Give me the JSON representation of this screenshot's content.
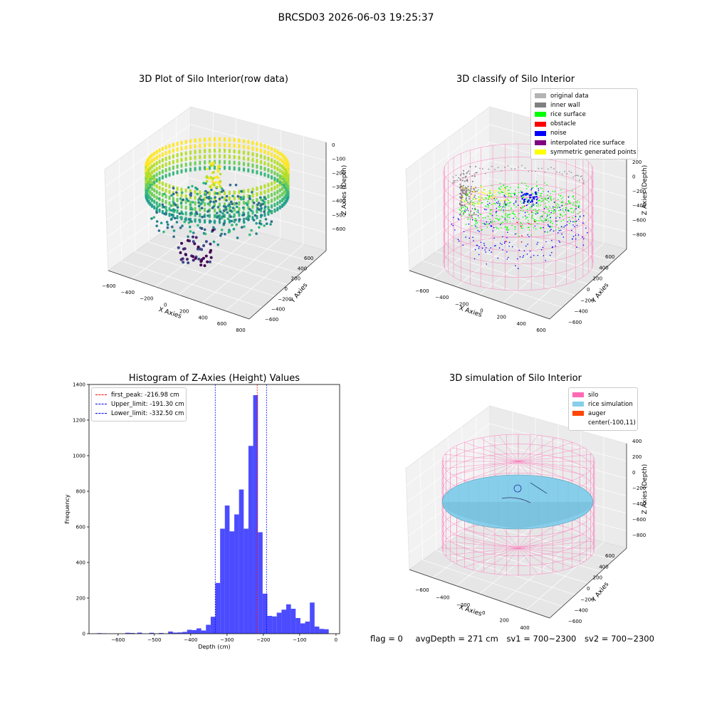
{
  "suptitle": "BRCSD03 2026-06-03 19:25:37",
  "panels": {
    "raw": {
      "title": "3D Plot of Silo Interior(row data)",
      "xlabel": "X Axies",
      "ylabel": "Y Axies",
      "zlabel": "Z Axies (Depth)",
      "xticks": [
        "−600",
        "−400",
        "−200",
        "0",
        "200",
        "400",
        "600",
        "800"
      ],
      "yticks": [
        "600",
        "400",
        "200",
        "0",
        "−200",
        "−400",
        "−600"
      ],
      "zticks": [
        "0",
        "−100",
        "−200",
        "−300",
        "−400",
        "−500",
        "−600"
      ]
    },
    "classify": {
      "title": "3D classify of Silo Interior",
      "xlabel": "X Axies",
      "ylabel": "Y Axies",
      "zlabel": "Z Axies (Depth)",
      "xticks": [
        "−600",
        "−400",
        "−200",
        "0",
        "200",
        "400",
        "600"
      ],
      "yticks": [
        "600",
        "400",
        "200",
        "0",
        "−200",
        "−400",
        "−600"
      ],
      "zticks": [
        "200",
        "0",
        "−200",
        "−400",
        "−600",
        "−800"
      ],
      "legend": [
        {
          "label": "original data",
          "color": "#b3b3b3"
        },
        {
          "label": "inner wall",
          "color": "#808080"
        },
        {
          "label": "rice surface",
          "color": "#00ff00"
        },
        {
          "label": "obstacle",
          "color": "#ff0000"
        },
        {
          "label": "noise",
          "color": "#0000ff"
        },
        {
          "label": "interpolated rice surface",
          "color": "#800080"
        },
        {
          "label": "symmetric generated points",
          "color": "#ffff00"
        }
      ]
    },
    "simulation": {
      "title": "3D simulation of Silo Interior",
      "xlabel": "X Axies",
      "ylabel": "Y Axies",
      "zlabel": "Z Axies (Depth)",
      "xticks": [
        "−600",
        "−400",
        "−200",
        "0",
        "200",
        "400"
      ],
      "yticks": [
        "600",
        "400",
        "200",
        "0",
        "−200",
        "−400",
        "−600"
      ],
      "zticks": [
        "400",
        "200",
        "0",
        "−200",
        "−400",
        "−600",
        "−800"
      ],
      "legend": [
        {
          "label": "silo",
          "color": "#ff69b4"
        },
        {
          "label": "rice simulation",
          "color": "#87ceeb"
        },
        {
          "label": "auger",
          "color": "#ff4500"
        },
        {
          "label": "center(-100,11)",
          "color": "#ffffff"
        }
      ]
    }
  },
  "chart_data": {
    "type": "bar",
    "title": "Histogram of Z-Axies (Height) Values",
    "xlabel": "Depth (cm)",
    "ylabel": "Frequency",
    "xlim": [
      -680,
      10
    ],
    "ylim": [
      0,
      1400
    ],
    "xticks": [
      -600,
      -500,
      -400,
      -300,
      -200,
      -100,
      0
    ],
    "xtick_labels": [
      "−600",
      "−500",
      "−400",
      "−300",
      "−200",
      "−100",
      "0"
    ],
    "yticks": [
      0,
      200,
      400,
      600,
      800,
      1000,
      1200,
      1400
    ],
    "bar_color": "#0000ff",
    "bins": [
      {
        "x0": -658,
        "x1": -645,
        "v": 3
      },
      {
        "x0": -645,
        "x1": -632,
        "v": 2
      },
      {
        "x0": -580,
        "x1": -567,
        "v": 5
      },
      {
        "x0": -567,
        "x1": -554,
        "v": 4
      },
      {
        "x0": -547,
        "x1": -534,
        "v": 6
      },
      {
        "x0": -514,
        "x1": -501,
        "v": 5
      },
      {
        "x0": -488,
        "x1": -475,
        "v": 4
      },
      {
        "x0": -462,
        "x1": -449,
        "v": 12
      },
      {
        "x0": -449,
        "x1": -436,
        "v": 6
      },
      {
        "x0": -436,
        "x1": -423,
        "v": 7
      },
      {
        "x0": -423,
        "x1": -410,
        "v": 10
      },
      {
        "x0": -410,
        "x1": -397,
        "v": 22
      },
      {
        "x0": -397,
        "x1": -384,
        "v": 20
      },
      {
        "x0": -384,
        "x1": -371,
        "v": 30
      },
      {
        "x0": -371,
        "x1": -358,
        "v": 18
      },
      {
        "x0": -358,
        "x1": -345,
        "v": 50
      },
      {
        "x0": -345,
        "x1": -332,
        "v": 95
      },
      {
        "x0": -332,
        "x1": -319,
        "v": 285
      },
      {
        "x0": -319,
        "x1": -306,
        "v": 590
      },
      {
        "x0": -306,
        "x1": -293,
        "v": 720
      },
      {
        "x0": -293,
        "x1": -280,
        "v": 575
      },
      {
        "x0": -280,
        "x1": -267,
        "v": 670
      },
      {
        "x0": -267,
        "x1": -254,
        "v": 810
      },
      {
        "x0": -254,
        "x1": -241,
        "v": 590
      },
      {
        "x0": -241,
        "x1": -228,
        "v": 1055
      },
      {
        "x0": -228,
        "x1": -215,
        "v": 1340
      },
      {
        "x0": -215,
        "x1": -202,
        "v": 570
      },
      {
        "x0": -202,
        "x1": -189,
        "v": 225
      },
      {
        "x0": -189,
        "x1": -176,
        "v": 100
      },
      {
        "x0": -176,
        "x1": -163,
        "v": 97
      },
      {
        "x0": -163,
        "x1": -150,
        "v": 118
      },
      {
        "x0": -150,
        "x1": -137,
        "v": 135
      },
      {
        "x0": -137,
        "x1": -124,
        "v": 165
      },
      {
        "x0": -124,
        "x1": -111,
        "v": 140
      },
      {
        "x0": -111,
        "x1": -98,
        "v": 88
      },
      {
        "x0": -98,
        "x1": -85,
        "v": 58
      },
      {
        "x0": -85,
        "x1": -72,
        "v": 68
      },
      {
        "x0": -72,
        "x1": -59,
        "v": 175
      },
      {
        "x0": -59,
        "x1": -46,
        "v": 40
      },
      {
        "x0": -46,
        "x1": -33,
        "v": 27
      },
      {
        "x0": -33,
        "x1": -20,
        "v": 25
      }
    ],
    "vlines": [
      {
        "x": -216.98,
        "color": "#ff0000",
        "label": "first_peak: -216.98 cm"
      },
      {
        "x": -191.3,
        "color": "#0000ff",
        "label": "Upper_limit: -191.30 cm"
      },
      {
        "x": -332.5,
        "color": "#0000ff",
        "label": "Lower_limit: -332.50 cm"
      }
    ],
    "legend_placement": "upper-left"
  },
  "footer": {
    "flag": "flag = 0",
    "avg": "avgDepth = 271 cm",
    "sv1": "sv1 = 700~2300",
    "sv2": "sv2 = 700~2300"
  }
}
